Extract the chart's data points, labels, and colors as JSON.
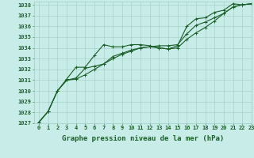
{
  "title": "Graphe pression niveau de la mer (hPa)",
  "bg_color": "#c8ece8",
  "grid_color": "#a0ccc4",
  "line_color": "#1a5e28",
  "xlim": [
    -0.5,
    23
  ],
  "ylim": [
    1027,
    1038.3
  ],
  "yticks": [
    1027,
    1028,
    1029,
    1030,
    1031,
    1032,
    1033,
    1034,
    1035,
    1036,
    1037,
    1038
  ],
  "xticks": [
    0,
    1,
    2,
    3,
    4,
    5,
    6,
    7,
    8,
    9,
    10,
    11,
    12,
    13,
    14,
    15,
    16,
    17,
    18,
    19,
    20,
    21,
    22,
    23
  ],
  "line1_x": [
    0,
    1,
    2,
    3,
    4,
    5,
    6,
    7,
    8,
    9,
    10,
    11,
    12,
    13,
    14,
    15,
    16,
    17,
    18,
    19,
    20,
    21,
    22,
    23
  ],
  "line1_y": [
    1027.1,
    1028.1,
    1030.0,
    1031.1,
    1032.2,
    1032.2,
    1033.3,
    1034.3,
    1034.1,
    1034.1,
    1034.3,
    1034.3,
    1034.2,
    1034.0,
    1033.9,
    1034.2,
    1036.0,
    1036.7,
    1036.8,
    1037.3,
    1037.5,
    1038.1,
    1038.0,
    1038.1
  ],
  "line2_x": [
    0,
    1,
    2,
    3,
    4,
    5,
    6,
    7,
    8,
    9,
    10,
    11,
    12,
    13,
    14,
    15,
    16,
    17,
    18,
    19,
    20,
    21,
    22,
    23
  ],
  "line2_y": [
    1027.1,
    1028.1,
    1030.0,
    1031.0,
    1031.2,
    1032.1,
    1032.3,
    1032.5,
    1033.2,
    1033.5,
    1033.8,
    1034.0,
    1034.1,
    1034.2,
    1034.2,
    1034.3,
    1035.3,
    1036.1,
    1036.4,
    1036.8,
    1037.2,
    1037.8,
    1038.0,
    1038.1
  ],
  "line3_x": [
    0,
    1,
    2,
    3,
    4,
    5,
    6,
    7,
    8,
    9,
    10,
    11,
    12,
    13,
    14,
    15,
    16,
    17,
    18,
    19,
    20,
    21,
    22,
    23
  ],
  "line3_y": [
    1027.1,
    1028.1,
    1030.0,
    1031.0,
    1031.1,
    1031.5,
    1032.0,
    1032.5,
    1033.0,
    1033.4,
    1033.7,
    1034.0,
    1034.1,
    1034.0,
    1033.9,
    1034.0,
    1034.8,
    1035.4,
    1035.9,
    1036.5,
    1037.2,
    1037.8,
    1038.0,
    1038.1
  ],
  "marker": "+",
  "markersize": 3,
  "linewidth": 0.8,
  "title_fontsize": 6.5,
  "tick_fontsize": 5.0
}
